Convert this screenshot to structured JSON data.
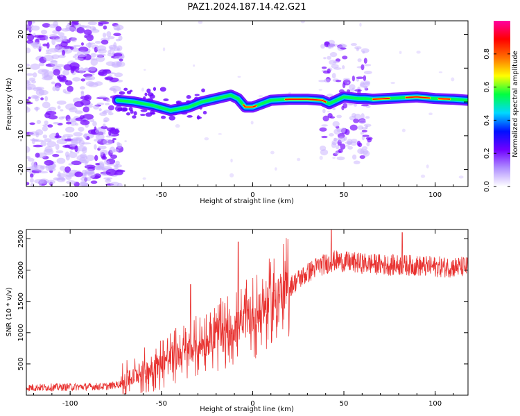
{
  "title": "PAZ1.2024.187.14.42.G21",
  "colorbar": {
    "label": "Normalized spectral amplitude",
    "ticks": [
      0.0,
      0.2,
      0.4,
      0.6,
      0.8
    ],
    "tick_labels": [
      "0.0",
      "0.2",
      "0.4",
      "0.6",
      "0.8"
    ],
    "colormap": [
      "#ffffff",
      "#b090ff",
      "#7000ff",
      "#0010ff",
      "#00d8ff",
      "#00ff40",
      "#ffff00",
      "#ff7000",
      "#ff0000",
      "#ff00a0"
    ]
  },
  "chart_data": [
    {
      "type": "heatmap",
      "xlabel": "Height of straight line (km)",
      "ylabel": "Frequency (Hz)",
      "xlim": [
        -124,
        118
      ],
      "ylim": [
        -25,
        24
      ],
      "xticks": [
        -100,
        -50,
        0,
        50,
        100
      ],
      "yticks": [
        20,
        10,
        0,
        -10,
        -20
      ],
      "signal_ridge": {
        "x": [
          -74,
          -65,
          -55,
          -45,
          -35,
          -28,
          -20,
          -12,
          -8,
          -4,
          0,
          5,
          10,
          20,
          30,
          38,
          42,
          50,
          58,
          62,
          66,
          80,
          90,
          100,
          110,
          118
        ],
        "freq": [
          0.5,
          0.0,
          -1.0,
          -2.5,
          -1.5,
          0.0,
          1.0,
          2.0,
          1.0,
          -1.5,
          -1.5,
          -0.5,
          0.5,
          0.8,
          0.8,
          0.5,
          -0.5,
          1.5,
          1.0,
          1.0,
          0.8,
          1.2,
          1.5,
          1.0,
          0.8,
          0.5
        ]
      }
    },
    {
      "type": "line",
      "xlabel": "Height of straight line (km)",
      "ylabel": "SNR (10 * v/v)",
      "xlim": [
        -124,
        118
      ],
      "ylim": [
        0,
        2650
      ],
      "xticks": [
        -100,
        -50,
        0,
        50,
        100
      ],
      "yticks": [
        500,
        1000,
        1500,
        2000,
        2500
      ],
      "series": [
        {
          "color": "#e8312f",
          "trend": {
            "x": [
              -124,
              -80,
              -72,
              -65,
              -55,
              -45,
              -35,
              -25,
              -15,
              -5,
              5,
              15,
              25,
              35,
              45,
              55,
              65,
              75,
              85,
              95,
              105,
              118
            ],
            "y": [
              120,
              140,
              180,
              300,
              450,
              600,
              700,
              850,
              1000,
              1150,
              1350,
              1600,
              1850,
              2050,
              2150,
              2120,
              2100,
              2080,
              2080,
              2060,
              2050,
              2050
            ]
          },
          "peaks": [
            {
              "x": -34,
              "y": 1770
            },
            {
              "x": -8,
              "y": 2450
            },
            {
              "x": 43,
              "y": 2650
            },
            {
              "x": 82,
              "y": 2600
            }
          ]
        }
      ]
    }
  ]
}
